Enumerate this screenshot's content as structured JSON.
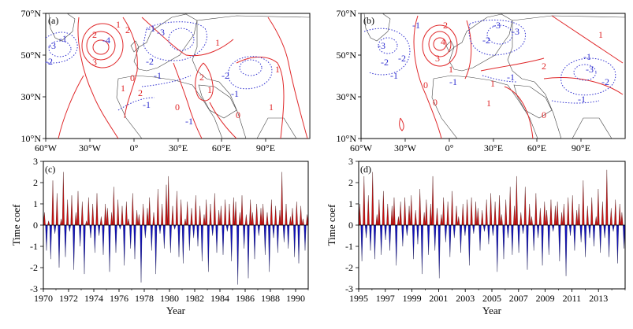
{
  "panels": {
    "a": {
      "label": "(a)"
    },
    "b": {
      "label": "(b)"
    },
    "c": {
      "label": "(c)"
    },
    "d": {
      "label": "(d)"
    }
  },
  "map_axes": {
    "x_ticks": [
      "60°W",
      "30°W",
      "0°",
      "30°E",
      "60°E",
      "90°E"
    ],
    "y_ticks": [
      "70°N",
      "50°N",
      "30°N",
      "10°N"
    ]
  },
  "contour_labels": {
    "a": [
      "-1",
      "-3",
      "-2",
      "2",
      "-4",
      "3",
      "1",
      "2",
      "-1",
      "-3",
      "-2",
      "-1",
      "1",
      "0",
      "2",
      "-1",
      "2",
      "1",
      "-2",
      "-1",
      "1",
      "0",
      "1",
      "0",
      "1",
      "-1"
    ],
    "b": [
      "-1",
      "-3",
      "-2",
      "-1",
      "-2",
      "-3",
      "2",
      "4",
      "3",
      "1",
      "-1",
      "-3",
      "-2",
      "1",
      "2",
      "1",
      "-1",
      "-1",
      "-3",
      "-2",
      "-1",
      "0",
      "0",
      "1",
      "0"
    ]
  },
  "colors": {
    "positive_contour": "#e0282a",
    "negative_contour": "#3030d0",
    "positive_fill": "#cc1111",
    "negative_fill": "#1010c0"
  },
  "chart_data": [
    {
      "type": "area",
      "panel": "(c)",
      "xlabel": "Year",
      "ylabel": "Time coef",
      "ylim": [
        -3,
        3
      ],
      "y_ticks": [
        "3",
        "2",
        "1",
        "0",
        "-1",
        "-2",
        "-3"
      ],
      "x_ticks": [
        "1970",
        "1972",
        "1974",
        "1976",
        "1978",
        "1980",
        "1982",
        "1984",
        "1986",
        "1988",
        "1990"
      ],
      "xlim": [
        1970,
        1991
      ],
      "x_start": 1970,
      "x_step": 0.16667,
      "values": [
        0.6,
        -1.2,
        0.2,
        -1.6,
        2.1,
        -0.4,
        1.5,
        -2.0,
        0.3,
        2.5,
        -1.5,
        1.2,
        -0.3,
        1.4,
        -2.1,
        0.6,
        1.6,
        -1.0,
        1.1,
        -2.3,
        0.2,
        1.3,
        -0.6,
        1.0,
        -1.3,
        1.5,
        -0.5,
        0.4,
        -1.4,
        1.0,
        0.8,
        -2.2,
        0.6,
        1.8,
        -1.3,
        1.2,
        -0.2,
        0.9,
        -1.9,
        1.1,
        0.3,
        -1.1,
        1.5,
        -1.6,
        0.7,
        0.5,
        -2.7,
        1.0,
        -0.6,
        0.8,
        1.3,
        -1.2,
        0.6,
        -2.3,
        1.7,
        -0.4,
        1.0,
        -1.1,
        1.9,
        2.3,
        -1.3,
        0.9,
        -0.2,
        1.6,
        -1.5,
        1.2,
        -1.8,
        0.3,
        1.1,
        -1.2,
        0.8,
        -0.6,
        1.4,
        -1.0,
        0.9,
        -1.7,
        0.5,
        1.2,
        -2.2,
        1.0,
        -0.5,
        1.5,
        -1.3,
        0.7,
        0.9,
        -1.4,
        1.2,
        -0.3,
        1.0,
        -1.7,
        1.3,
        1.1,
        -2.8,
        0.6,
        1.4,
        -1.1,
        0.5,
        -2.5,
        1.2,
        0.6,
        -1.6,
        1.0,
        -0.5,
        0.8,
        1.0,
        -1.4,
        0.6,
        -2.2,
        1.2,
        -0.6,
        0.9,
        -1.3,
        0.7,
        2.5,
        -0.8,
        1.0,
        -1.1,
        0.4,
        0.8,
        -1.5,
        1.1,
        -1.8,
        0.9,
        0.3,
        -1.2,
        0.5
      ]
    },
    {
      "type": "area",
      "panel": "(d)",
      "xlabel": "Year",
      "ylabel": "Time coef",
      "ylim": [
        -3,
        3
      ],
      "y_ticks": [
        "3",
        "2",
        "1",
        "0",
        "-1",
        "-2",
        "-3"
      ],
      "x_ticks": [
        "1995",
        "1997",
        "1999",
        "2001",
        "2003",
        "2005",
        "2007",
        "2009",
        "2011",
        "2013"
      ],
      "xlim": [
        1995,
        2015
      ],
      "x_start": 1995,
      "x_step": 0.16667,
      "values": [
        1.0,
        -1.7,
        2.3,
        -0.6,
        1.4,
        -1.2,
        2.5,
        -1.6,
        0.5,
        1.2,
        -1.4,
        1.6,
        -0.7,
        1.0,
        -1.2,
        0.9,
        1.3,
        -1.9,
        0.4,
        1.1,
        -1.0,
        1.3,
        -0.5,
        0.9,
        1.4,
        -1.6,
        0.7,
        -0.9,
        1.7,
        -2.3,
        0.6,
        1.2,
        -1.4,
        1.0,
        2.3,
        -1.2,
        0.8,
        -2.5,
        0.5,
        1.3,
        -0.8,
        1.1,
        -1.5,
        1.6,
        -0.6,
        0.9,
        0.4,
        -1.3,
        1.0,
        -0.5,
        1.2,
        -1.9,
        1.3,
        -0.4,
        1.1,
        0.8,
        -1.2,
        0.7,
        -0.3,
        1.2,
        -0.9,
        1.5,
        -0.5,
        1.1,
        -2.2,
        1.4,
        0.5,
        -1.6,
        1.2,
        -0.6,
        1.8,
        -1.4,
        0.9,
        2.3,
        -1.3,
        0.6,
        -0.4,
        1.8,
        -2.1,
        1.0,
        0.4,
        -1.2,
        1.5,
        -0.6,
        0.8,
        -1.9,
        1.1,
        0.7,
        -1.4,
        1.2,
        -0.3,
        0.9,
        1.1,
        -1.7,
        0.6,
        1.0,
        -2.4,
        1.3,
        -0.5,
        1.4,
        -1.2,
        0.7,
        1.0,
        -0.8,
        2.1,
        -1.5,
        0.9,
        -0.6,
        1.3,
        -1.0,
        0.4,
        1.7,
        -1.3,
        1.1,
        -0.6,
        2.6,
        -1.5,
        0.8,
        -0.3,
        1.2,
        -1.8,
        1.0,
        0.6,
        -1.1
      ]
    }
  ]
}
